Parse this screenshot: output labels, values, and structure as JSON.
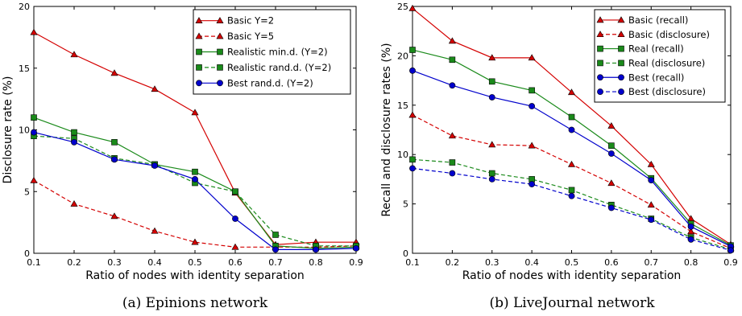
{
  "chart_data": [
    {
      "type": "line",
      "caption": "(a) Epinions network",
      "xlabel": "Ratio of nodes with identity separation",
      "ylabel": "Disclosure rate (%)",
      "xlim": [
        0.1,
        0.9
      ],
      "ylim": [
        0,
        20
      ],
      "xticks": [
        "0.1",
        "0.2",
        "0.3",
        "0.4",
        "0.5",
        "0.6",
        "0.7",
        "0.8",
        "0.9"
      ],
      "yticks": [
        "0",
        "5",
        "10",
        "15",
        "20"
      ],
      "legend_position": "top-right",
      "grid": false,
      "x": [
        0.1,
        0.2,
        0.3,
        0.4,
        0.5,
        0.6,
        0.7,
        0.8,
        0.9
      ],
      "series": [
        {
          "name": "Basic Y=2",
          "color": "#d40000",
          "marker": "triangle",
          "dash": "solid",
          "values": [
            17.9,
            16.1,
            14.6,
            13.3,
            11.4,
            4.9,
            0.7,
            0.9,
            0.9
          ]
        },
        {
          "name": "Basic Y=5",
          "color": "#d40000",
          "marker": "triangle",
          "dash": "dashed",
          "values": [
            5.9,
            4.0,
            3.0,
            1.8,
            0.9,
            0.5,
            0.5,
            0.5,
            0.6
          ]
        },
        {
          "name": "Realistic min.d. (Y=2)",
          "color": "#1a8a1a",
          "marker": "square",
          "dash": "solid",
          "values": [
            11.0,
            9.8,
            9.0,
            7.2,
            6.6,
            5.0,
            0.6,
            0.4,
            0.5
          ]
        },
        {
          "name": "Realistic rand.d. (Y=2)",
          "color": "#1a8a1a",
          "marker": "square",
          "dash": "dashed",
          "values": [
            9.5,
            9.3,
            7.7,
            7.2,
            5.7,
            5.0,
            1.5,
            0.6,
            0.6
          ]
        },
        {
          "name": "Best rand.d. (Y=2)",
          "color": "#0000cc",
          "marker": "circle",
          "dash": "solid",
          "values": [
            9.8,
            9.0,
            7.6,
            7.1,
            6.0,
            2.8,
            0.3,
            0.3,
            0.4
          ]
        }
      ]
    },
    {
      "type": "line",
      "caption": "(b) LiveJournal network",
      "xlabel": "Ratio of nodes with identity separation",
      "ylabel": "Recall and disclosure rates (%)",
      "xlim": [
        0.1,
        0.9
      ],
      "ylim": [
        0,
        25
      ],
      "xticks": [
        "0.1",
        "0.2",
        "0.3",
        "0.4",
        "0.5",
        "0.6",
        "0.7",
        "0.8",
        "0.9"
      ],
      "yticks": [
        "0",
        "5",
        "10",
        "15",
        "20",
        "25"
      ],
      "legend_position": "top-right",
      "grid": false,
      "x": [
        0.1,
        0.2,
        0.3,
        0.4,
        0.5,
        0.6,
        0.7,
        0.8,
        0.9
      ],
      "series": [
        {
          "name": "Basic (recall)",
          "color": "#d40000",
          "marker": "triangle",
          "dash": "solid",
          "values": [
            24.8,
            21.5,
            19.8,
            19.8,
            16.3,
            12.9,
            9.0,
            3.5,
            0.9
          ]
        },
        {
          "name": "Basic (disclosure)",
          "color": "#d40000",
          "marker": "triangle",
          "dash": "dashed",
          "values": [
            14.0,
            11.9,
            11.0,
            10.9,
            9.0,
            7.1,
            4.9,
            2.2,
            0.5
          ]
        },
        {
          "name": "Real (recall)",
          "color": "#1a8a1a",
          "marker": "square",
          "dash": "solid",
          "values": [
            20.6,
            19.6,
            17.4,
            16.5,
            13.8,
            10.9,
            7.6,
            3.0,
            0.8
          ]
        },
        {
          "name": "Real (disclosure)",
          "color": "#1a8a1a",
          "marker": "square",
          "dash": "dashed",
          "values": [
            9.5,
            9.2,
            8.1,
            7.5,
            6.4,
            4.9,
            3.5,
            1.6,
            0.4
          ]
        },
        {
          "name": "Best (recall)",
          "color": "#0000cc",
          "marker": "circle",
          "dash": "solid",
          "values": [
            18.5,
            17.0,
            15.8,
            14.9,
            12.5,
            10.1,
            7.4,
            2.7,
            0.7
          ]
        },
        {
          "name": "Best (disclosure)",
          "color": "#0000cc",
          "marker": "circle",
          "dash": "dashed",
          "values": [
            8.6,
            8.1,
            7.5,
            7.0,
            5.8,
            4.6,
            3.4,
            1.4,
            0.3
          ]
        }
      ]
    }
  ]
}
